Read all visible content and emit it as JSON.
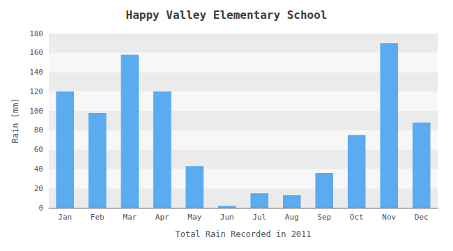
{
  "chart_data": {
    "type": "bar",
    "title": "Happy Valley Elementary School",
    "xlabel": "Total Rain Recorded in 2011",
    "ylabel": "Rain (mm)",
    "categories": [
      "Jan",
      "Feb",
      "Mar",
      "Apr",
      "May",
      "Jun",
      "Jul",
      "Aug",
      "Sep",
      "Oct",
      "Nov",
      "Dec"
    ],
    "values": [
      120,
      98,
      158,
      120,
      43,
      2,
      15,
      13,
      36,
      75,
      170,
      88
    ],
    "color": "#5aabf0",
    "ylim": [
      0,
      180
    ],
    "yticks": [
      0,
      20,
      40,
      60,
      80,
      100,
      120,
      140,
      160,
      180
    ],
    "grid": true
  }
}
